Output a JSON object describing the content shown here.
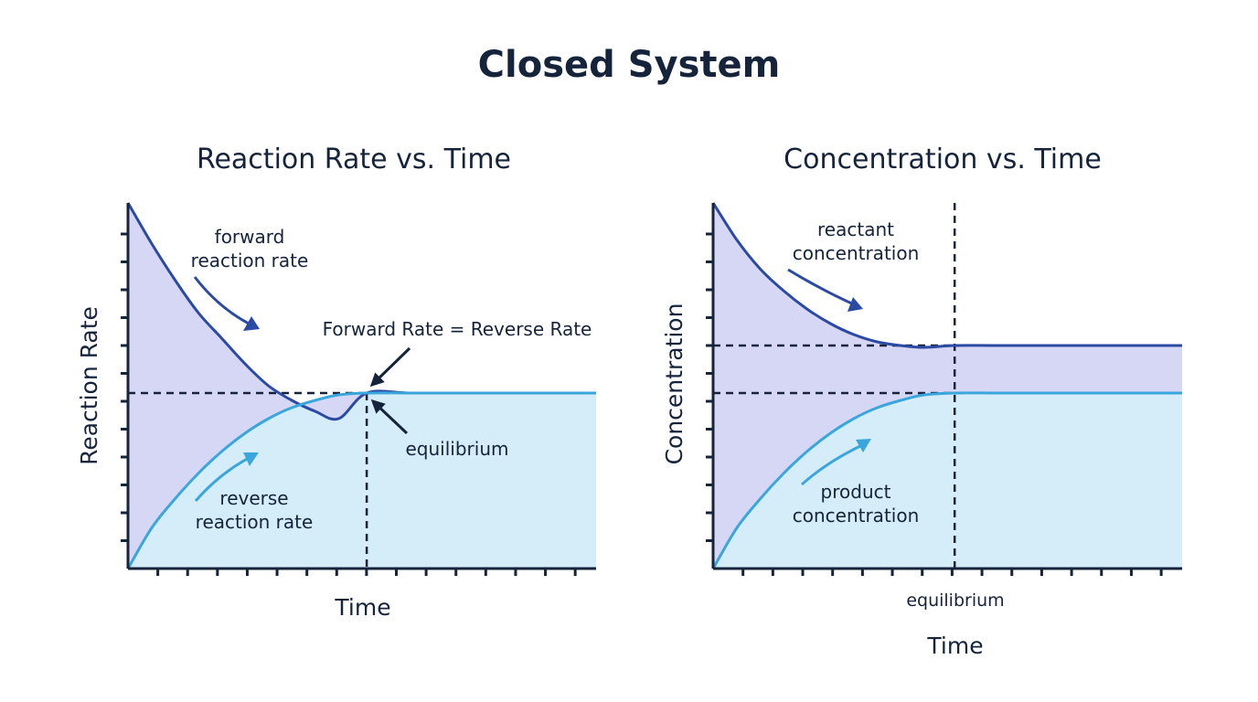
{
  "page": {
    "title": "Closed System"
  },
  "colors": {
    "forward": "#2a4aa3",
    "reverse": "#3aa6dc",
    "fill_forward": "#d6d7f4",
    "fill_reverse": "#d5ecf9",
    "axis": "#15233b",
    "text": "#15233b"
  },
  "chart_data": [
    {
      "type": "line",
      "title": "Reaction Rate vs. Time",
      "xlabel": "Time",
      "ylabel": "Reaction Rate",
      "xlim": [
        0,
        10
      ],
      "ylim": [
        0,
        10
      ],
      "x_ticks": 15,
      "y_ticks": 12,
      "grid": false,
      "equilibrium_x": 5.1,
      "series": [
        {
          "name": "forward reaction rate",
          "color": "#2a4aa3",
          "x": [
            0,
            0.5,
            1,
            1.5,
            2,
            2.5,
            3,
            3.5,
            4,
            4.5,
            5.1,
            6,
            7,
            8,
            9,
            10
          ],
          "y": [
            10,
            8.9,
            7.9,
            7.0,
            6.3,
            5.6,
            5.0,
            4.6,
            4.3,
            4.1,
            4.8,
            4.8,
            4.8,
            4.8,
            4.8,
            4.8
          ]
        },
        {
          "name": "reverse reaction rate",
          "color": "#3aa6dc",
          "x": [
            0,
            0.5,
            1,
            1.5,
            2,
            2.5,
            3,
            3.5,
            4,
            4.5,
            5.1,
            6,
            7,
            8,
            9,
            10
          ],
          "y": [
            0,
            1.1,
            1.9,
            2.6,
            3.2,
            3.7,
            4.1,
            4.4,
            4.6,
            4.75,
            4.8,
            4.8,
            4.8,
            4.8,
            4.8,
            4.8
          ]
        }
      ],
      "annotations": [
        {
          "lines": [
            "forward",
            "reaction rate"
          ]
        },
        {
          "lines": [
            "reverse",
            "reaction rate"
          ]
        },
        {
          "lines": [
            "Forward Rate = Reverse Rate"
          ]
        },
        {
          "lines": [
            "equilibrium"
          ]
        }
      ]
    },
    {
      "type": "line",
      "title": "Concentration vs. Time",
      "xlabel": "Time",
      "ylabel": "Concentration",
      "xlim": [
        0,
        10
      ],
      "ylim": [
        0,
        10
      ],
      "x_ticks": 15,
      "y_ticks": 12,
      "grid": false,
      "equilibrium_x": 5.15,
      "equilibrium_label": "equilibrium",
      "series": [
        {
          "name": "reactant concentration",
          "color": "#2a4aa3",
          "x": [
            0,
            0.5,
            1,
            1.5,
            2,
            2.5,
            3,
            3.5,
            4,
            4.5,
            5.15,
            6,
            7,
            8,
            9,
            10
          ],
          "y": [
            10,
            9.0,
            8.2,
            7.6,
            7.1,
            6.7,
            6.4,
            6.2,
            6.1,
            6.05,
            6.1,
            6.1,
            6.1,
            6.1,
            6.1,
            6.1
          ]
        },
        {
          "name": "product concentration",
          "color": "#3aa6dc",
          "x": [
            0,
            0.5,
            1,
            1.5,
            2,
            2.5,
            3,
            3.5,
            4,
            4.5,
            5.15,
            6,
            7,
            8,
            9,
            10
          ],
          "y": [
            0,
            1.1,
            1.9,
            2.6,
            3.2,
            3.7,
            4.1,
            4.4,
            4.6,
            4.75,
            4.8,
            4.8,
            4.8,
            4.8,
            4.8,
            4.8
          ]
        }
      ],
      "annotations": [
        {
          "lines": [
            "reactant",
            "concentration"
          ]
        },
        {
          "lines": [
            "product",
            "concentration"
          ]
        }
      ]
    }
  ]
}
